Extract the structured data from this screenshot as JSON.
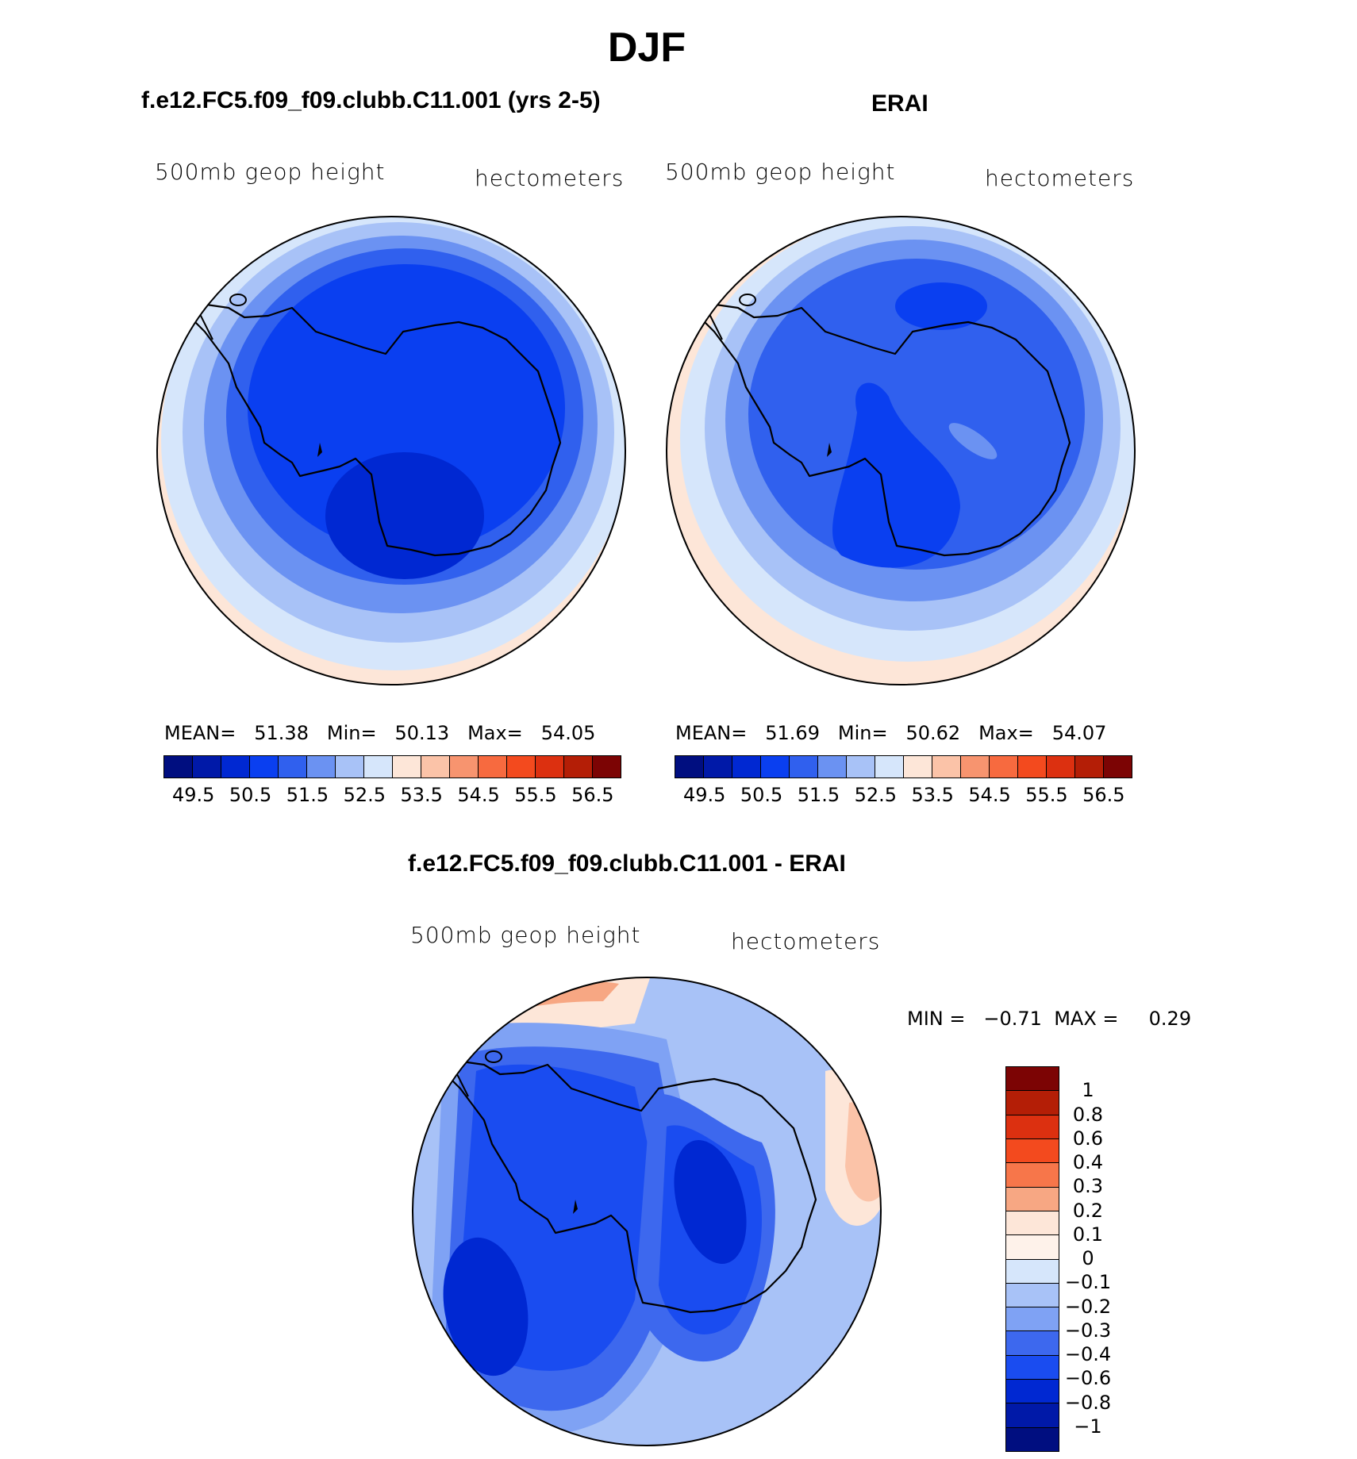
{
  "figure": {
    "season_title": "DJF",
    "panels": [
      {
        "id": "model",
        "header": "f.e12.FC5.f09_f09.clubb.C11.001 (yrs 2-5)",
        "field_label": "500mb  geop  height",
        "units_label": "hectometers",
        "stats": {
          "mean_label": "MEAN=",
          "mean": "51.38",
          "min_label": "Min=",
          "min": "50.13",
          "max_label": "Max=",
          "max": "54.05"
        }
      },
      {
        "id": "obs",
        "header": "ERAI",
        "field_label": "500mb  geop  height",
        "units_label": "hectometers",
        "stats": {
          "mean_label": "MEAN=",
          "mean": "51.69",
          "min_label": "Min=",
          "min": "50.62",
          "max_label": "Max=",
          "max": "54.07"
        }
      }
    ],
    "diff_panel": {
      "header": "f.e12.FC5.f09_f09.clubb.C11.001 - ERAI",
      "field_label": "500mb  geop  height",
      "units_label": "hectometers",
      "stats": {
        "min_label": "MIN =",
        "min": "−0.71",
        "max_label": "MAX =",
        "max": "0.29"
      }
    },
    "colorbar_abs": {
      "labels": [
        "49.5",
        "50.5",
        "51.5",
        "52.5",
        "53.5",
        "54.5",
        "55.5",
        "56.5"
      ],
      "colors": [
        "#000e80",
        "#0019a8",
        "#0028d2",
        "#0a3ff0",
        "#3060ee",
        "#6b92f2",
        "#a8c2f7",
        "#d6e6fb",
        "#fde6d8",
        "#fbc3a8",
        "#f7946f",
        "#f76a3f",
        "#f34a1e",
        "#dc3010",
        "#b41e06",
        "#7c0404"
      ]
    },
    "colorbar_diff": {
      "labels": [
        "1",
        "0.8",
        "0.6",
        "0.4",
        "0.3",
        "0.2",
        "0.1",
        "0",
        "−0.1",
        "−0.2",
        "−0.3",
        "−0.4",
        "−0.6",
        "−0.8",
        "−1"
      ],
      "colors": [
        "#7c0404",
        "#b41e06",
        "#dc3010",
        "#f34a1e",
        "#f7764a",
        "#f7a783",
        "#fde6d8",
        "#fef2ea",
        "#d6e6fb",
        "#a8c2f7",
        "#7fa2f4",
        "#3d68ee",
        "#1a4cf0",
        "#0028d2",
        "#0019a8",
        "#000e80"
      ]
    }
  }
}
